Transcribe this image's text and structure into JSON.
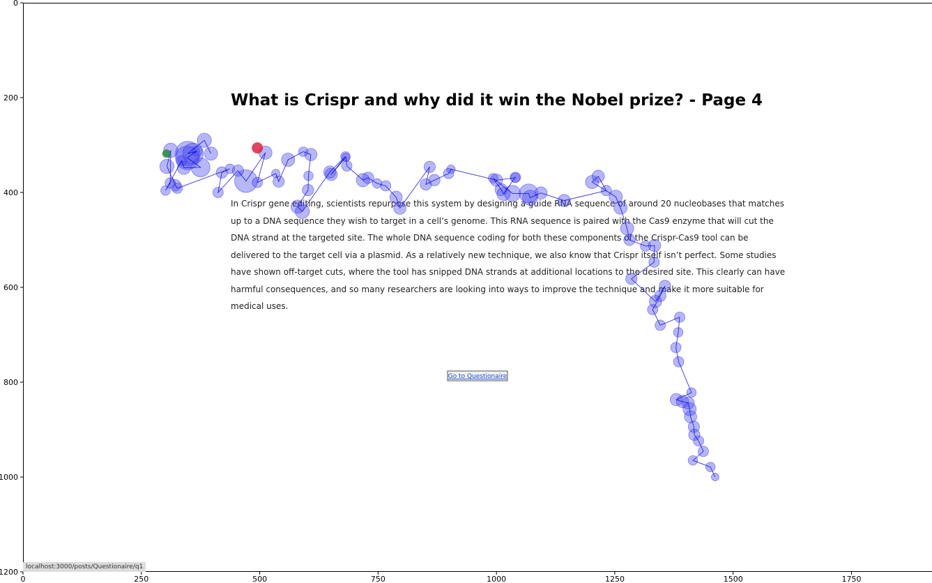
{
  "page": {
    "title": "What is Crispr and why did it win the Nobel prize? - Page 4",
    "paragraph_lines": [
      "In Crispr gene editing, scientists repurpose this system by designing a guide RNA sequence of around 20 nucleobases that matches",
      "up to a DNA sequence they wish to target in a cell’s genome. This RNA sequence is paired with the Cas9 enzyme that will cut the",
      "DNA strand at the targeted site. The whole DNA sequence coding for both these components of the Crispr-Cas9 tool can be",
      "delivered to the target cell via a plasmid. As a relatively new technique, we also know that Crispr itself isn’t perfect. Some studies",
      "have shown off-target cuts, where the tool has snipped DNA strands at additional locations to the desired site. This clearly can have",
      "harmful consequences, and so many researchers are looking into ways to improve the technique and make it more suitable for",
      "medical uses."
    ],
    "button_label": "Go to Questionaire",
    "status_url": "localhost:3000/posts/Questionaire/q1"
  },
  "chart_data": {
    "type": "scatter",
    "title": "",
    "xlabel": "",
    "ylabel": "",
    "xlim": [
      0,
      1920
    ],
    "ylim": [
      0,
      1200
    ],
    "y_inverted": true,
    "x_ticks": [
      0,
      250,
      500,
      750,
      1000,
      1250,
      1500,
      1750
    ],
    "y_ticks": [
      0,
      200,
      400,
      600,
      800,
      1000,
      1200
    ],
    "grid": false,
    "colors": {
      "fixation": "#4040ee",
      "scanpath": "#0000dd",
      "start": "#2a8a3a",
      "end": "#dd2244"
    },
    "fixations": [
      [
        397,
        318,
        14
      ],
      [
        383,
        290,
        15
      ],
      [
        348,
        318,
        26
      ],
      [
        368,
        313,
        11
      ],
      [
        359,
        318,
        22
      ],
      [
        347,
        327,
        25
      ],
      [
        375,
        347,
        20
      ],
      [
        340,
        348,
        14
      ],
      [
        335,
        333,
        11
      ],
      [
        301,
        396,
        10
      ],
      [
        311,
        380,
        11
      ],
      [
        312,
        311,
        15
      ],
      [
        304,
        345,
        15
      ],
      [
        322,
        385,
        12
      ],
      [
        326,
        391,
        11
      ],
      [
        437,
        350,
        10
      ],
      [
        420,
        358,
        12
      ],
      [
        412,
        400,
        11
      ],
      [
        454,
        354,
        12
      ],
      [
        471,
        376,
        24
      ],
      [
        512,
        316,
        14
      ],
      [
        495,
        379,
        11
      ],
      [
        534,
        360,
        9
      ],
      [
        540,
        377,
        12
      ],
      [
        560,
        331,
        14
      ],
      [
        592,
        314,
        10
      ],
      [
        608,
        320,
        13
      ],
      [
        603,
        365,
        10
      ],
      [
        602,
        395,
        12
      ],
      [
        580,
        430,
        14
      ],
      [
        590,
        440,
        15
      ],
      [
        648,
        357,
        13
      ],
      [
        681,
        324,
        10
      ],
      [
        651,
        362,
        13
      ],
      [
        682,
        326,
        9
      ],
      [
        684,
        344,
        11
      ],
      [
        718,
        374,
        14
      ],
      [
        729,
        369,
        12
      ],
      [
        748,
        381,
        10
      ],
      [
        766,
        386,
        11
      ],
      [
        788,
        410,
        13
      ],
      [
        796,
        433,
        13
      ],
      [
        859,
        346,
        12
      ],
      [
        851,
        383,
        12
      ],
      [
        869,
        374,
        12
      ],
      [
        899,
        360,
        11
      ],
      [
        904,
        351,
        9
      ],
      [
        1000,
        374,
        13
      ],
      [
        1040,
        369,
        10
      ],
      [
        1040,
        368,
        11
      ],
      [
        1015,
        403,
        14
      ],
      [
        1010,
        394,
        13
      ],
      [
        993,
        370,
        10
      ],
      [
        1034,
        402,
        17
      ],
      [
        1068,
        402,
        20
      ],
      [
        1071,
        411,
        16
      ],
      [
        1094,
        401,
        13
      ],
      [
        1143,
        417,
        13
      ],
      [
        1232,
        396,
        11
      ],
      [
        1215,
        366,
        13
      ],
      [
        1202,
        378,
        14
      ],
      [
        1252,
        409,
        14
      ],
      [
        1262,
        432,
        14
      ],
      [
        1276,
        476,
        14
      ],
      [
        1281,
        500,
        12
      ],
      [
        1315,
        513,
        11
      ],
      [
        1334,
        512,
        13
      ],
      [
        1333,
        547,
        11
      ],
      [
        1285,
        582,
        12
      ],
      [
        1336,
        630,
        13
      ],
      [
        1356,
        597,
        12
      ],
      [
        1346,
        618,
        12
      ],
      [
        1330,
        647,
        11
      ],
      [
        1346,
        680,
        11
      ],
      [
        1387,
        663,
        11
      ],
      [
        1384,
        695,
        10
      ],
      [
        1379,
        727,
        11
      ],
      [
        1385,
        757,
        11
      ],
      [
        1412,
        822,
        10
      ],
      [
        1380,
        837,
        13
      ],
      [
        1393,
        841,
        13
      ],
      [
        1405,
        844,
        13
      ],
      [
        1408,
        857,
        14
      ],
      [
        1410,
        873,
        13
      ],
      [
        1417,
        894,
        12
      ],
      [
        1418,
        911,
        12
      ],
      [
        1427,
        924,
        11
      ],
      [
        1437,
        946,
        11
      ],
      [
        1415,
        965,
        10
      ],
      [
        1452,
        979,
        10
      ],
      [
        1462,
        1000,
        8
      ]
    ],
    "start_point": [
      303,
      318
    ],
    "end_point": [
      495,
      306
    ]
  }
}
